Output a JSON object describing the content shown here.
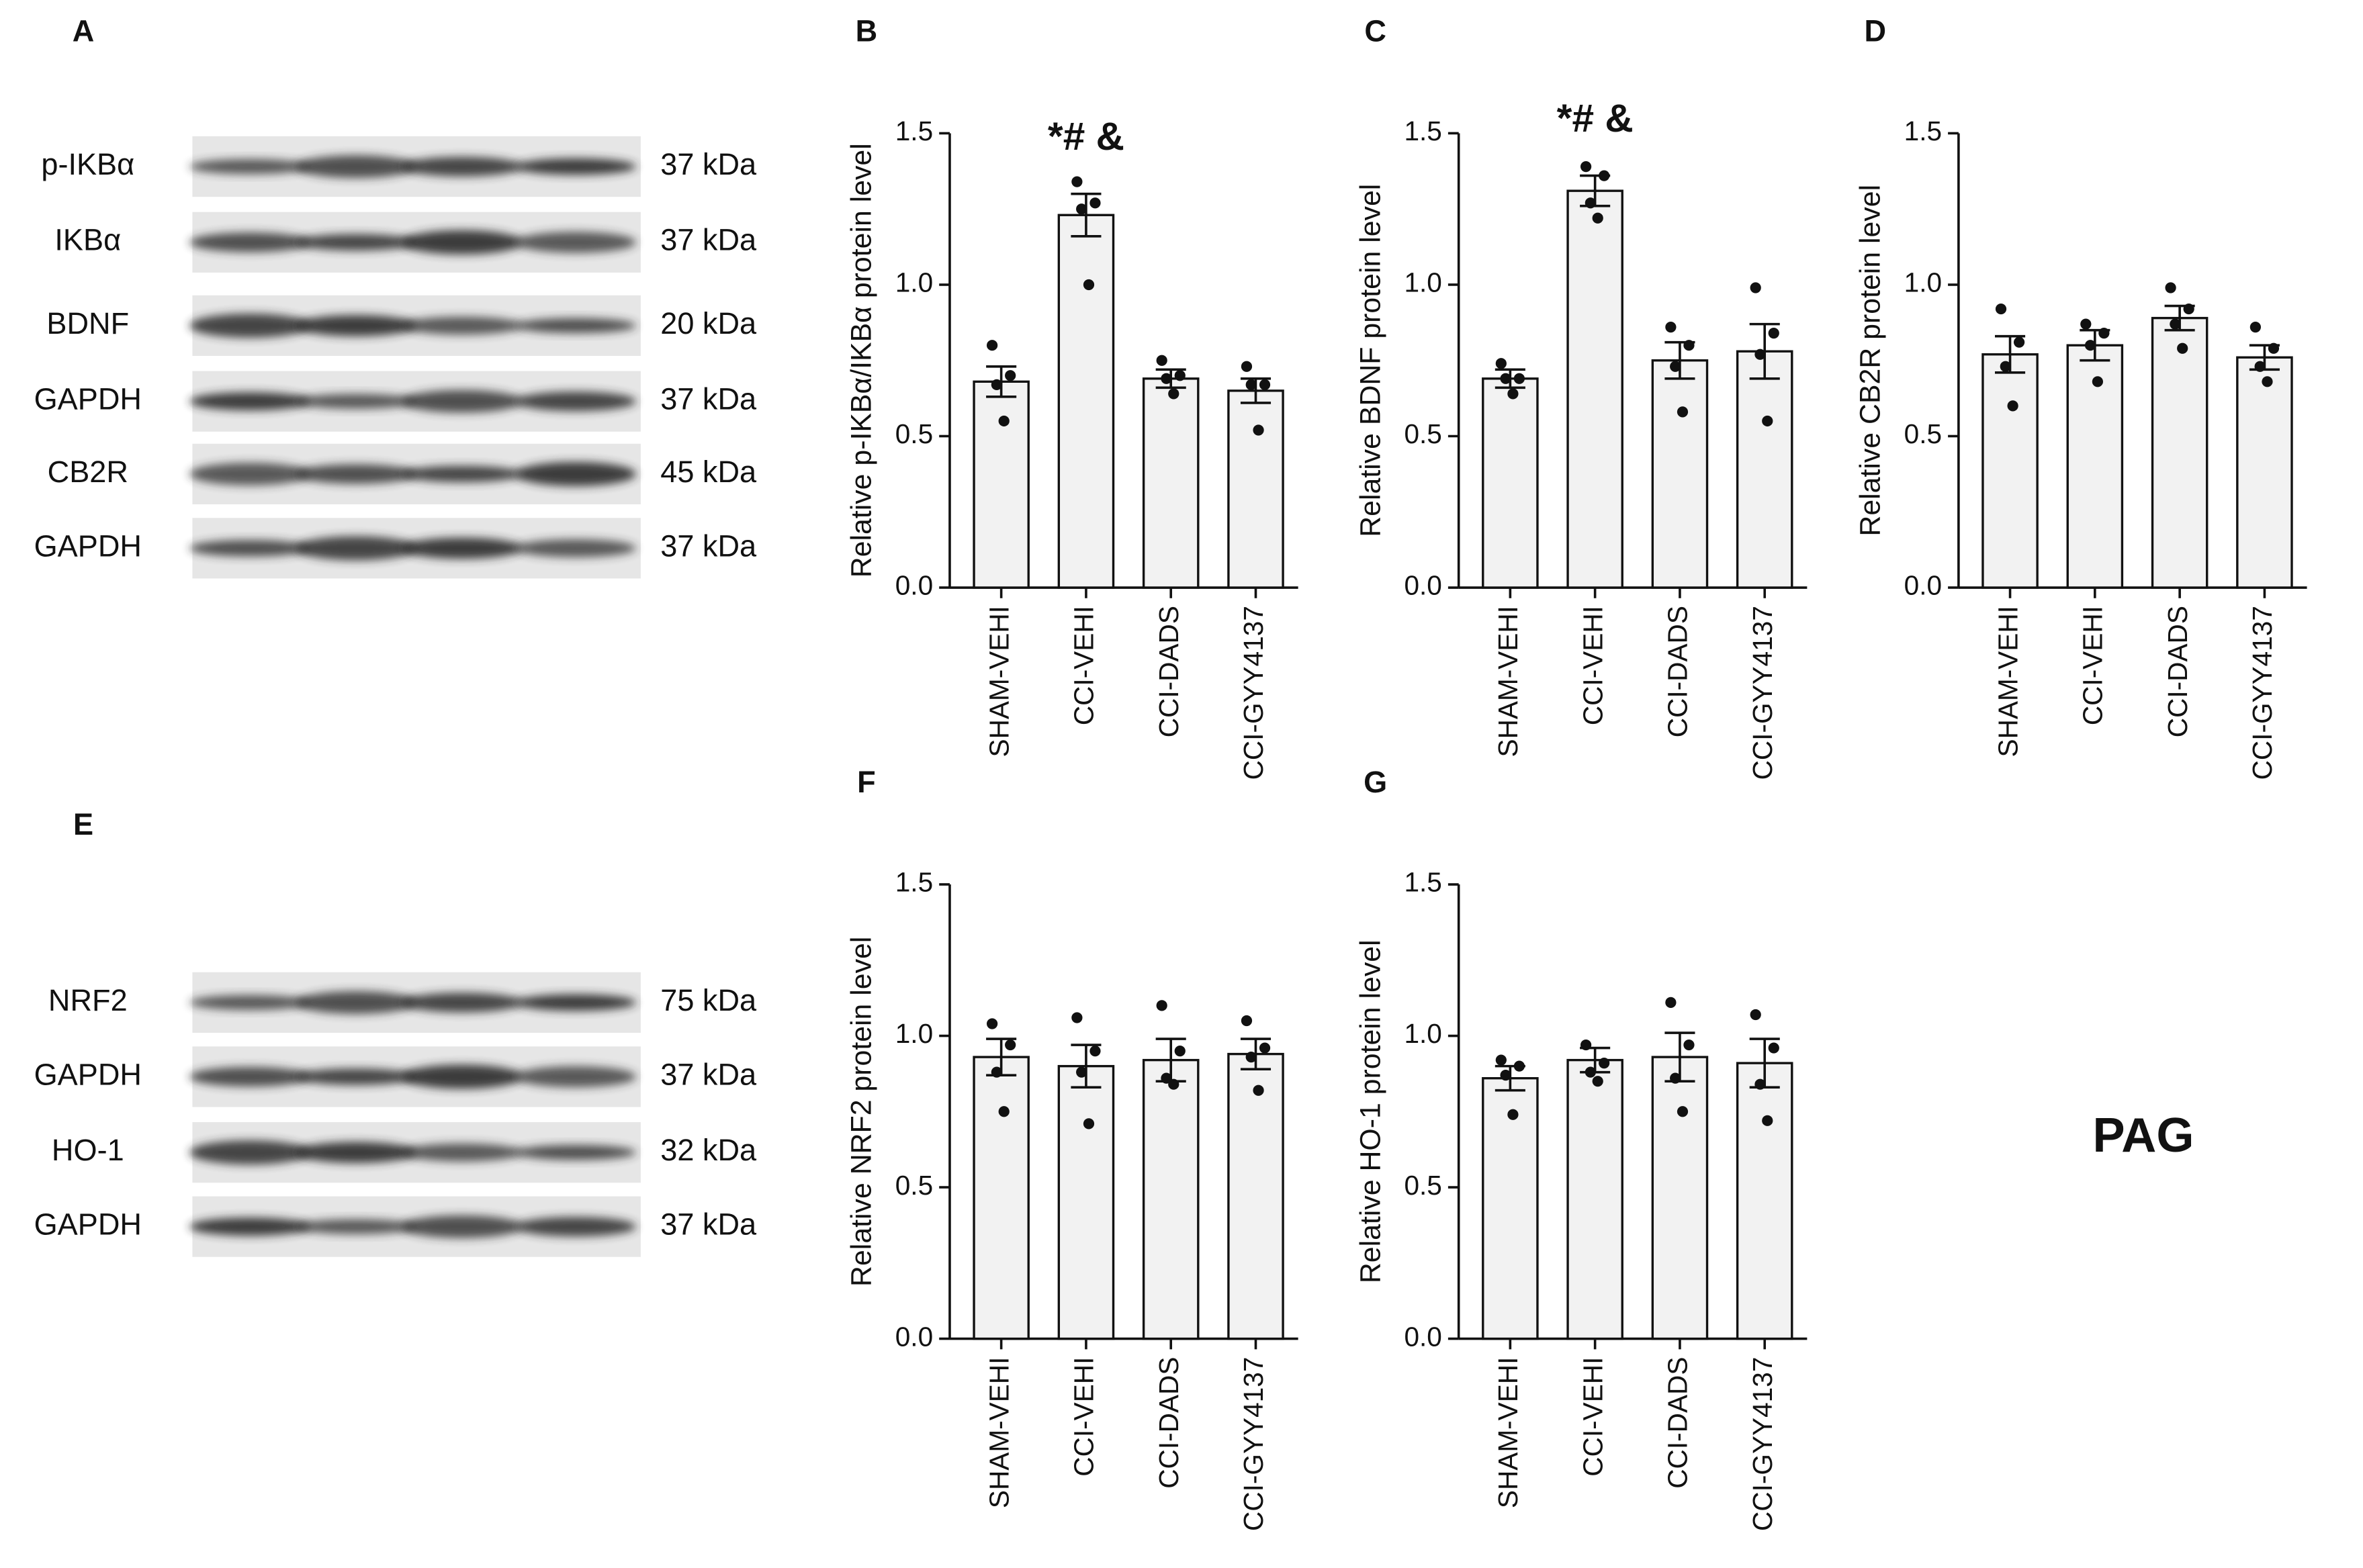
{
  "blot_panels": [
    {
      "label": "A",
      "rows": [
        {
          "protein": "p-IKBα",
          "size": "37 kDa"
        },
        {
          "protein": "IKBα",
          "size": "37 kDa"
        },
        {
          "protein": "BDNF",
          "size": "20 kDa"
        },
        {
          "protein": "GAPDH",
          "size": "37 kDa"
        },
        {
          "protein": "CB2R",
          "size": "45 kDa"
        },
        {
          "protein": "GAPDH",
          "size": "37 kDa"
        }
      ]
    },
    {
      "label": "E",
      "rows": [
        {
          "protein": "NRF2",
          "size": "75 kDa"
        },
        {
          "protein": "GAPDH",
          "size": "37 kDa"
        },
        {
          "protein": "HO-1",
          "size": "32 kDa"
        },
        {
          "protein": "GAPDH",
          "size": "37 kDa"
        }
      ]
    }
  ],
  "annotation": "PAG",
  "chart_data": [
    {
      "type": "bar",
      "label": "B",
      "ylabel": "Relative p-IKBα/IKBα protein level",
      "categories": [
        "SHAM-VEHI",
        "CCI-VEHI",
        "CCI-DADS",
        "CCI-GYY4137"
      ],
      "values": [
        0.68,
        1.23,
        0.69,
        0.65
      ],
      "errors": [
        0.05,
        0.07,
        0.03,
        0.04
      ],
      "points": [
        [
          0.8,
          0.7,
          0.67,
          0.55
        ],
        [
          1.34,
          1.27,
          1.25,
          1.0
        ],
        [
          0.75,
          0.7,
          0.69,
          0.64
        ],
        [
          0.73,
          0.67,
          0.67,
          0.52
        ]
      ],
      "significance": [
        null,
        "*# &",
        null,
        null
      ],
      "color": "#f2f2f2",
      "ylim": [
        0,
        1.5
      ],
      "yticks": [
        {
          "value": 0,
          "label": "0.0"
        },
        {
          "value": 0.5,
          "label": "0.5"
        },
        {
          "value": 1,
          "label": "1.0"
        },
        {
          "value": 1.5,
          "label": "1.5"
        }
      ]
    },
    {
      "type": "bar",
      "label": "C",
      "ylabel": "Relative BDNF protein level",
      "categories": [
        "SHAM-VEHI",
        "CCI-VEHI",
        "CCI-DADS",
        "CCI-GYY4137"
      ],
      "values": [
        0.69,
        1.31,
        0.75,
        0.78
      ],
      "errors": [
        0.03,
        0.05,
        0.06,
        0.09
      ],
      "points": [
        [
          0.74,
          0.69,
          0.69,
          0.64
        ],
        [
          1.39,
          1.36,
          1.27,
          1.22
        ],
        [
          0.86,
          0.8,
          0.73,
          0.58
        ],
        [
          0.99,
          0.84,
          0.77,
          0.55
        ]
      ],
      "significance": [
        null,
        "*# &",
        null,
        null
      ],
      "color": "#f2f2f2",
      "ylim": [
        0,
        1.5
      ],
      "yticks": [
        {
          "value": 0,
          "label": "0.0"
        },
        {
          "value": 0.5,
          "label": "0.5"
        },
        {
          "value": 1,
          "label": "1.0"
        },
        {
          "value": 1.5,
          "label": "1.5"
        }
      ]
    },
    {
      "type": "bar",
      "label": "D",
      "ylabel": "Relative CB2R protein level",
      "categories": [
        "SHAM-VEHI",
        "CCI-VEHI",
        "CCI-DADS",
        "CCI-GYY4137"
      ],
      "values": [
        0.77,
        0.8,
        0.89,
        0.76
      ],
      "errors": [
        0.06,
        0.05,
        0.04,
        0.04
      ],
      "points": [
        [
          0.92,
          0.81,
          0.73,
          0.6
        ],
        [
          0.87,
          0.84,
          0.8,
          0.68
        ],
        [
          0.99,
          0.92,
          0.87,
          0.79
        ],
        [
          0.86,
          0.79,
          0.73,
          0.68
        ]
      ],
      "color": "#f2f2f2",
      "ylim": [
        0,
        1.5
      ],
      "yticks": [
        {
          "value": 0,
          "label": "0.0"
        },
        {
          "value": 0.5,
          "label": "0.5"
        },
        {
          "value": 1,
          "label": "1.0"
        },
        {
          "value": 1.5,
          "label": "1.5"
        }
      ]
    },
    {
      "type": "bar",
      "label": "F",
      "ylabel": "Relative NRF2 protein level",
      "categories": [
        "SHAM-VEHI",
        "CCI-VEHI",
        "CCI-DADS",
        "CCI-GYY4137"
      ],
      "values": [
        0.93,
        0.9,
        0.92,
        0.94
      ],
      "errors": [
        0.06,
        0.07,
        0.07,
        0.05
      ],
      "points": [
        [
          1.04,
          0.97,
          0.88,
          0.75
        ],
        [
          1.06,
          0.95,
          0.88,
          0.71
        ],
        [
          1.1,
          0.95,
          0.86,
          0.84
        ],
        [
          1.05,
          0.96,
          0.93,
          0.82
        ]
      ],
      "color": "#f2f2f2",
      "ylim": [
        0,
        1.5
      ],
      "yticks": [
        {
          "value": 0,
          "label": "0.0"
        },
        {
          "value": 0.5,
          "label": "0.5"
        },
        {
          "value": 1,
          "label": "1.0"
        },
        {
          "value": 1.5,
          "label": "1.5"
        }
      ]
    },
    {
      "type": "bar",
      "label": "G",
      "ylabel": "Relative HO-1 protein level",
      "categories": [
        "SHAM-VEHI",
        "CCI-VEHI",
        "CCI-DADS",
        "CCI-GYY4137"
      ],
      "values": [
        0.86,
        0.92,
        0.93,
        0.91
      ],
      "errors": [
        0.04,
        0.04,
        0.08,
        0.08
      ],
      "points": [
        [
          0.92,
          0.9,
          0.87,
          0.74
        ],
        [
          0.97,
          0.91,
          0.88,
          0.85
        ],
        [
          1.11,
          0.97,
          0.86,
          0.75
        ],
        [
          1.07,
          0.96,
          0.84,
          0.72
        ]
      ],
      "color": "#f2f2f2",
      "ylim": [
        0,
        1.5
      ],
      "yticks": [
        {
          "value": 0,
          "label": "0.0"
        },
        {
          "value": 0.5,
          "label": "0.5"
        },
        {
          "value": 1,
          "label": "1.0"
        },
        {
          "value": 1.5,
          "label": "1.5"
        }
      ]
    }
  ]
}
